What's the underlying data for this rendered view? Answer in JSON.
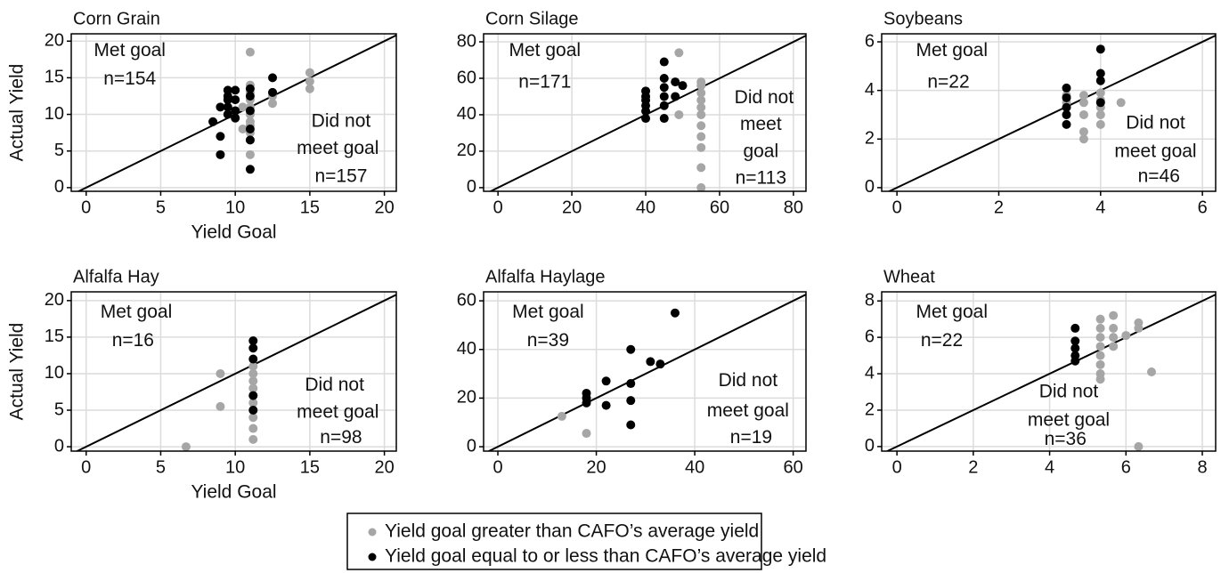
{
  "chart_data": [
    {
      "type": "scatter",
      "title": "Corn Grain",
      "xlabel": "Yield Goal",
      "ylabel": "Actual Yield",
      "xlim": [
        -1,
        20.8
      ],
      "ylim": [
        -0.5,
        21
      ],
      "xticks": [
        0,
        5,
        10,
        15,
        20
      ],
      "yticks": [
        0,
        5,
        10,
        15,
        20
      ],
      "grid": true,
      "annotations": [
        "Met goal",
        "n=154",
        "Did not",
        "meet goal",
        "n=157"
      ],
      "series": [
        {
          "name": "Yield goal greater than CAFO’s average yield",
          "color": "#a6a6a6",
          "x": [
            10,
            10.5,
            10.5,
            11,
            11,
            11,
            11,
            11,
            11,
            11,
            11,
            11,
            11,
            12.5,
            12.5,
            12.5,
            15,
            15,
            15,
            11
          ],
          "values": [
            9.5,
            8,
            11,
            7.5,
            9,
            10,
            11,
            12,
            13,
            14,
            18.5,
            4.5,
            6.5,
            11.5,
            12.5,
            13,
            13.5,
            14.5,
            15.7,
            8.5
          ]
        },
        {
          "name": "Yield goal equal to or less than CAFO’s average yield",
          "color": "#000000",
          "x": [
            8.5,
            9,
            9,
            9,
            9.5,
            9.5,
            9.5,
            9.5,
            9.5,
            10,
            10,
            10,
            10,
            11,
            11,
            11,
            11,
            11,
            11,
            12.5,
            12.5
          ],
          "values": [
            9,
            4.5,
            7,
            11,
            10,
            11,
            12,
            12.5,
            13.3,
            9.5,
            10.5,
            12,
            13.3,
            2.5,
            6.5,
            8,
            10.5,
            12.5,
            13.5,
            13,
            15
          ]
        }
      ]
    },
    {
      "type": "scatter",
      "title": "Corn Silage",
      "xlim": [
        -3.9,
        83.4
      ],
      "ylim": [
        -2,
        84.4
      ],
      "xticks": [
        0,
        20,
        40,
        60,
        80
      ],
      "yticks": [
        0,
        20,
        40,
        60,
        80
      ],
      "grid": true,
      "annotations": [
        "Met goal",
        "n=171",
        "Did not",
        "meet",
        "goal",
        "n=113"
      ],
      "series": [
        {
          "color": "#a6a6a6",
          "x": [
            49,
            49,
            55,
            55,
            55,
            55,
            55,
            55,
            55,
            55,
            55,
            55,
            55
          ],
          "values": [
            74,
            40,
            0,
            11,
            22,
            28,
            34,
            40,
            44,
            48,
            52,
            56,
            58
          ]
        },
        {
          "color": "#000000",
          "x": [
            40,
            40,
            40,
            40,
            40,
            40,
            45,
            45,
            45,
            45,
            45,
            45,
            48,
            48,
            50
          ],
          "values": [
            38,
            42,
            45,
            48,
            50,
            53,
            38,
            45,
            50,
            55,
            60,
            69,
            50,
            58,
            56
          ]
        }
      ]
    },
    {
      "type": "scatter",
      "title": "Soybeans",
      "xlim": [
        -0.3,
        6.26
      ],
      "ylim": [
        -0.15,
        6.33
      ],
      "xticks": [
        0,
        2,
        4,
        6
      ],
      "yticks": [
        0,
        2,
        4,
        6
      ],
      "grid": true,
      "annotations": [
        "Met goal",
        "n=22",
        "Did not",
        "meet goal",
        "n=46"
      ],
      "series": [
        {
          "color": "#a6a6a6",
          "x": [
            3.33,
            3.33,
            3.67,
            3.67,
            3.67,
            3.67,
            3.67,
            4,
            4,
            4,
            4,
            4,
            4.4
          ],
          "values": [
            3.5,
            3.8,
            2,
            2.3,
            3,
            3.5,
            3.8,
            2.6,
            3,
            3.3,
            3.6,
            3.9,
            3.5
          ]
        },
        {
          "color": "#000000",
          "x": [
            3.33,
            3.33,
            3.33,
            3.33,
            3.33,
            4,
            4,
            4,
            4
          ],
          "values": [
            2.6,
            3,
            3.3,
            3.7,
            4.1,
            3.5,
            4.4,
            4.7,
            5.7
          ]
        }
      ]
    },
    {
      "type": "scatter",
      "title": "Alfalfa Hay",
      "xlabel": "Yield Goal",
      "ylabel": "Actual Yield",
      "xlim": [
        -1,
        20.8
      ],
      "ylim": [
        -0.6,
        21.2
      ],
      "xticks": [
        0,
        5,
        10,
        15,
        20
      ],
      "yticks": [
        0,
        5,
        10,
        15,
        20
      ],
      "grid": true,
      "annotations": [
        "Met goal",
        "n=16",
        "Did not",
        "meet goal",
        "n=98"
      ],
      "series": [
        {
          "color": "#a6a6a6",
          "x": [
            6.7,
            9,
            9,
            11.2,
            11.2,
            11.2,
            11.2,
            11.2,
            11.2,
            11.2,
            11.2,
            11.2,
            11.2
          ],
          "values": [
            0,
            10,
            5.5,
            1,
            2.5,
            4,
            5,
            6,
            7,
            8,
            9,
            10,
            11
          ]
        },
        {
          "color": "#000000",
          "x": [
            11.2,
            11.2,
            11.2,
            11.2,
            11.2
          ],
          "values": [
            5,
            7,
            12,
            13.5,
            14.5
          ]
        }
      ]
    },
    {
      "type": "scatter",
      "title": "Alfalfa Haylage",
      "xlim": [
        -2.9,
        62.6
      ],
      "ylim": [
        -1.8,
        63.7
      ],
      "xticks": [
        0,
        20,
        40,
        60
      ],
      "yticks": [
        0,
        20,
        40,
        60
      ],
      "grid": true,
      "annotations": [
        "Met goal",
        "n=39",
        "Did not",
        "meet goal",
        "n=19"
      ],
      "series": [
        {
          "color": "#a6a6a6",
          "x": [
            13,
            18
          ],
          "values": [
            12.5,
            5.5
          ]
        },
        {
          "color": "#000000",
          "x": [
            18,
            18,
            18,
            22,
            22,
            27,
            27,
            27,
            27,
            31,
            33,
            36
          ],
          "values": [
            18,
            20,
            22,
            17,
            27,
            9,
            19,
            26,
            40,
            35,
            34,
            55
          ]
        }
      ]
    },
    {
      "type": "scatter",
      "title": "Wheat",
      "xlim": [
        -0.4,
        8.35
      ],
      "ylim": [
        -0.25,
        8.5
      ],
      "xticks": [
        0,
        2,
        4,
        6,
        8
      ],
      "yticks": [
        0,
        2,
        4,
        6,
        8
      ],
      "grid": true,
      "annotations": [
        "Met goal",
        "n=22",
        "Did not",
        "meet goal",
        "n=36"
      ],
      "series": [
        {
          "color": "#a6a6a6",
          "x": [
            5.33,
            5.33,
            5.33,
            5.33,
            5.33,
            5.33,
            5.33,
            5.33,
            5.67,
            5.67,
            5.67,
            5.67,
            6,
            6.33,
            6.33,
            6.67,
            6.33
          ],
          "values": [
            3.7,
            4,
            4.5,
            5,
            5.5,
            6,
            6.5,
            7,
            5.5,
            6,
            6.5,
            7.2,
            6.1,
            6.5,
            6.8,
            4.1,
            0
          ]
        },
        {
          "color": "#000000",
          "x": [
            4.67,
            4.67,
            4.67,
            4.67,
            4.67
          ],
          "values": [
            4.7,
            5,
            5.4,
            5.8,
            6.5
          ]
        }
      ]
    }
  ]
}
